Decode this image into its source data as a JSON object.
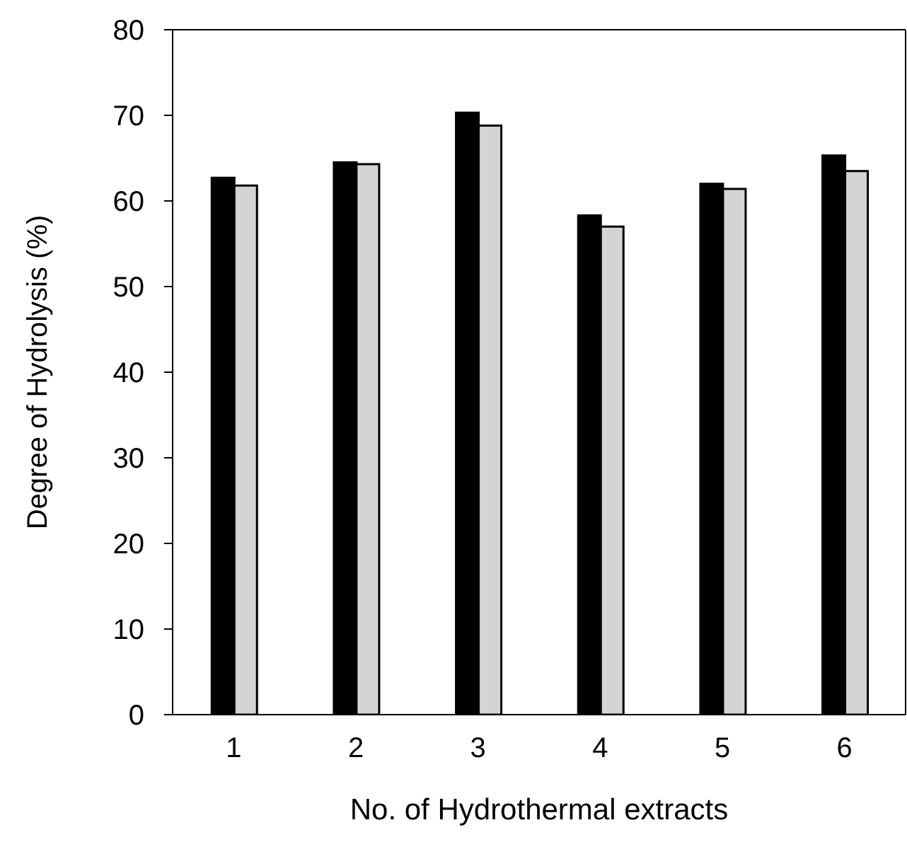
{
  "chart_data": {
    "type": "bar",
    "xlabel": "No. of  Hydrothermal extracts",
    "ylabel": "Degree of Hydrolysis (%)",
    "categories": [
      "1",
      "2",
      "3",
      "4",
      "5",
      "6"
    ],
    "series": [
      {
        "color": "#000000",
        "values": [
          62.7,
          64.5,
          70.3,
          58.3,
          62.0,
          65.3
        ]
      },
      {
        "color": "#d4d4d4",
        "values": [
          61.8,
          64.3,
          68.8,
          57.0,
          61.4,
          63.5
        ]
      }
    ],
    "ylim": [
      0,
      80
    ],
    "yticks": [
      0,
      10,
      20,
      30,
      40,
      50,
      60,
      70,
      80
    ],
    "grid": false,
    "legend": false
  }
}
